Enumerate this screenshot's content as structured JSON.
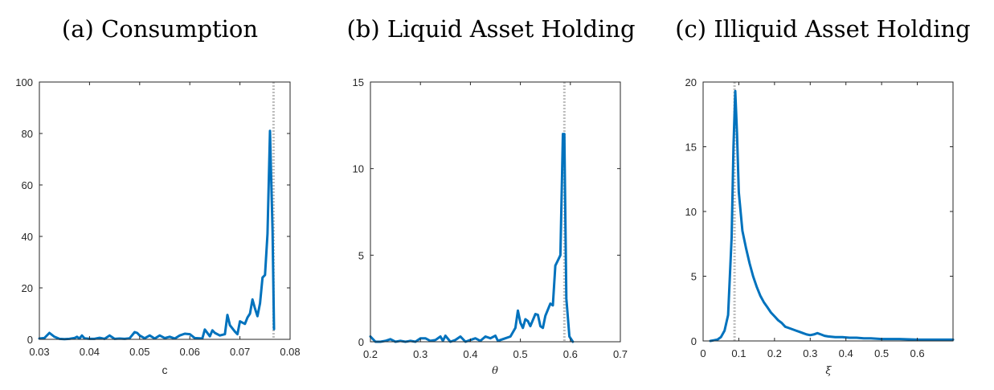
{
  "colors": {
    "curve": "#0072BD",
    "reference": "#BDBDBD",
    "axis": "#262626"
  },
  "chart_data": [
    {
      "type": "line",
      "title": "(a) Consumption",
      "xlabel": "c",
      "ylabel": "",
      "xlim": [
        0.03,
        0.08
      ],
      "ylim": [
        0,
        100
      ],
      "xticks": [
        "0.03",
        "0.04",
        "0.05",
        "0.06",
        "0.07",
        "0.08"
      ],
      "yticks": [
        "0",
        "20",
        "40",
        "60",
        "80",
        "100"
      ],
      "grid": false,
      "reference_line_x": 0.0767,
      "series": [
        {
          "x": [
            0.03,
            0.031,
            0.032,
            0.033,
            0.034,
            0.035,
            0.036,
            0.037,
            0.0375,
            0.038,
            0.0385,
            0.039,
            0.04,
            0.041,
            0.042,
            0.043,
            0.044,
            0.045,
            0.046,
            0.047,
            0.048,
            0.049,
            0.0495,
            0.05,
            0.051,
            0.052,
            0.053,
            0.054,
            0.055,
            0.056,
            0.057,
            0.058,
            0.059,
            0.06,
            0.061,
            0.062,
            0.0625,
            0.063,
            0.064,
            0.0645,
            0.065,
            0.066,
            0.067,
            0.0675,
            0.068,
            0.069,
            0.0695,
            0.07,
            0.071,
            0.0715,
            0.072,
            0.0725,
            0.073,
            0.0735,
            0.074,
            0.0745,
            0.075,
            0.0755,
            0.076,
            0.0765,
            0.0768
          ],
          "y": [
            0.3,
            0.5,
            2.5,
            1.0,
            0.2,
            0.1,
            0.2,
            0.5,
            1.0,
            0.3,
            1.5,
            0.4,
            0.2,
            0.2,
            0.6,
            0.2,
            1.5,
            0.2,
            0.3,
            0.2,
            0.4,
            2.8,
            2.5,
            1.5,
            0.4,
            1.5,
            0.3,
            1.5,
            0.5,
            1.0,
            0.3,
            1.5,
            2.2,
            2.0,
            0.5,
            0.4,
            0.3,
            3.8,
            1.2,
            3.5,
            2.5,
            1.5,
            2.0,
            9.5,
            5.5,
            3.0,
            2.0,
            7.0,
            6.0,
            8.5,
            10.0,
            15.5,
            12.0,
            9.0,
            14.0,
            24.0,
            25.0,
            41.0,
            81.0,
            42.0,
            4.0
          ]
        }
      ]
    },
    {
      "type": "line",
      "title": "(b) Liquid Asset Holding",
      "xlabel": "θ",
      "ylabel": "",
      "xlim": [
        0.2,
        0.7
      ],
      "ylim": [
        0,
        15
      ],
      "xticks": [
        "0.2",
        "0.3",
        "0.4",
        "0.5",
        "0.6",
        "0.7"
      ],
      "yticks": [
        "0",
        "5",
        "10",
        "15"
      ],
      "grid": false,
      "reference_line_x": 0.588,
      "series": [
        {
          "x": [
            0.2,
            0.21,
            0.22,
            0.23,
            0.24,
            0.25,
            0.26,
            0.27,
            0.28,
            0.29,
            0.3,
            0.31,
            0.32,
            0.33,
            0.34,
            0.345,
            0.35,
            0.36,
            0.37,
            0.38,
            0.39,
            0.4,
            0.41,
            0.42,
            0.43,
            0.44,
            0.45,
            0.455,
            0.46,
            0.47,
            0.48,
            0.49,
            0.495,
            0.5,
            0.505,
            0.51,
            0.515,
            0.52,
            0.53,
            0.535,
            0.54,
            0.545,
            0.55,
            0.56,
            0.565,
            0.57,
            0.575,
            0.58,
            0.585,
            0.588,
            0.592,
            0.598,
            0.605
          ],
          "y": [
            0.3,
            0.0,
            0.0,
            0.05,
            0.15,
            0.0,
            0.05,
            0.0,
            0.05,
            0.0,
            0.2,
            0.2,
            0.05,
            0.1,
            0.3,
            0.05,
            0.35,
            0.0,
            0.1,
            0.3,
            0.0,
            0.1,
            0.2,
            0.05,
            0.3,
            0.2,
            0.35,
            0.05,
            0.1,
            0.2,
            0.3,
            0.8,
            1.8,
            1.1,
            0.8,
            1.3,
            1.2,
            0.9,
            1.6,
            1.55,
            0.9,
            0.8,
            1.5,
            2.2,
            2.1,
            4.4,
            4.7,
            5.0,
            12.0,
            12.0,
            2.5,
            0.3,
            0.0
          ]
        }
      ]
    },
    {
      "type": "line",
      "title": "(c) Illiquid Asset Holding",
      "xlabel": "ξ",
      "ylabel": "",
      "xlim": [
        0,
        0.7
      ],
      "ylim": [
        0,
        20
      ],
      "xticks": [
        "0",
        "0.1",
        "0.2",
        "0.3",
        "0.4",
        "0.5",
        "0.6"
      ],
      "yticks": [
        "0",
        "5",
        "10",
        "15",
        "20"
      ],
      "grid": false,
      "reference_line_x": 0.088,
      "series": [
        {
          "x": [
            0.02,
            0.03,
            0.04,
            0.05,
            0.06,
            0.07,
            0.08,
            0.085,
            0.09,
            0.095,
            0.1,
            0.11,
            0.12,
            0.13,
            0.14,
            0.15,
            0.16,
            0.17,
            0.18,
            0.19,
            0.2,
            0.21,
            0.22,
            0.23,
            0.24,
            0.25,
            0.26,
            0.27,
            0.28,
            0.29,
            0.3,
            0.31,
            0.32,
            0.33,
            0.34,
            0.35,
            0.37,
            0.39,
            0.41,
            0.43,
            0.45,
            0.47,
            0.5,
            0.55,
            0.6,
            0.65,
            0.7
          ],
          "y": [
            0.0,
            0.05,
            0.1,
            0.3,
            0.8,
            2.0,
            8.0,
            15.0,
            19.3,
            16.0,
            11.5,
            8.5,
            7.2,
            6.0,
            5.0,
            4.2,
            3.5,
            3.0,
            2.6,
            2.2,
            1.9,
            1.6,
            1.4,
            1.1,
            1.0,
            0.9,
            0.8,
            0.7,
            0.6,
            0.5,
            0.45,
            0.5,
            0.6,
            0.5,
            0.4,
            0.35,
            0.3,
            0.3,
            0.25,
            0.25,
            0.2,
            0.2,
            0.15,
            0.15,
            0.1,
            0.1,
            0.1
          ]
        }
      ]
    }
  ]
}
